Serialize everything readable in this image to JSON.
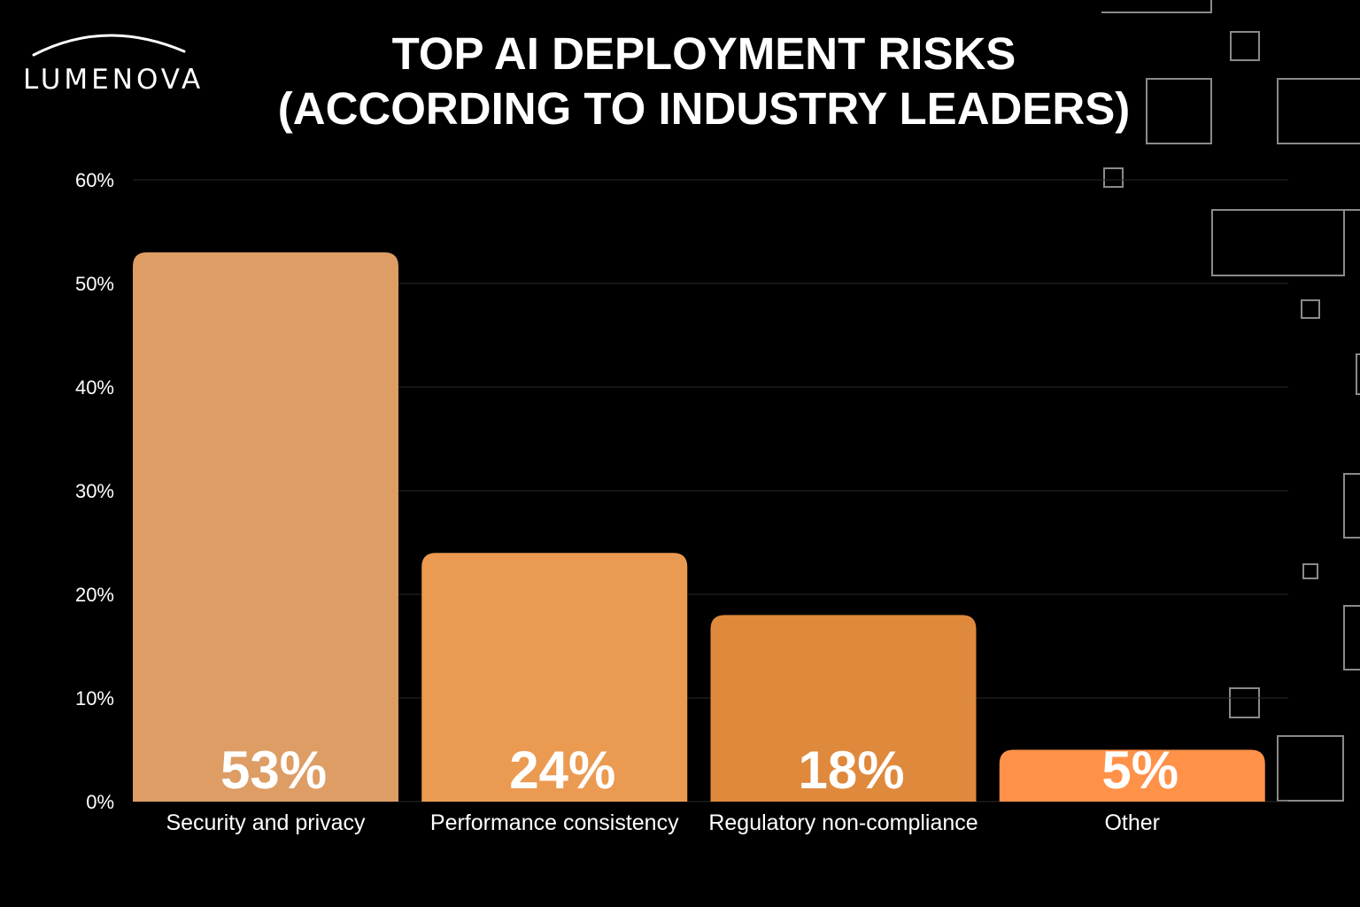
{
  "brand": {
    "name": "LUMENOVA"
  },
  "chart_data": {
    "type": "bar",
    "title_lines": [
      "TOP AI DEPLOYMENT RISKS",
      "(ACCORDING TO INDUSTRY LEADERS)"
    ],
    "categories": [
      "Security and privacy",
      "Performance consistency",
      "Regulatory non-compliance",
      "Other"
    ],
    "values": [
      53,
      24,
      18,
      5
    ],
    "data_labels": [
      "53%",
      "24%",
      "18%",
      "5%"
    ],
    "bar_colors": [
      "#dd9d64",
      "#eb9a51",
      "#df893c",
      "#ff9148"
    ],
    "ylim": [
      0,
      60
    ],
    "yticks": [
      0,
      10,
      20,
      30,
      40,
      50,
      60
    ],
    "ytick_labels": [
      "0%",
      "10%",
      "20%",
      "30%",
      "40%",
      "50%",
      "60%"
    ],
    "grid": true,
    "legend": "none",
    "background": "#000000"
  }
}
